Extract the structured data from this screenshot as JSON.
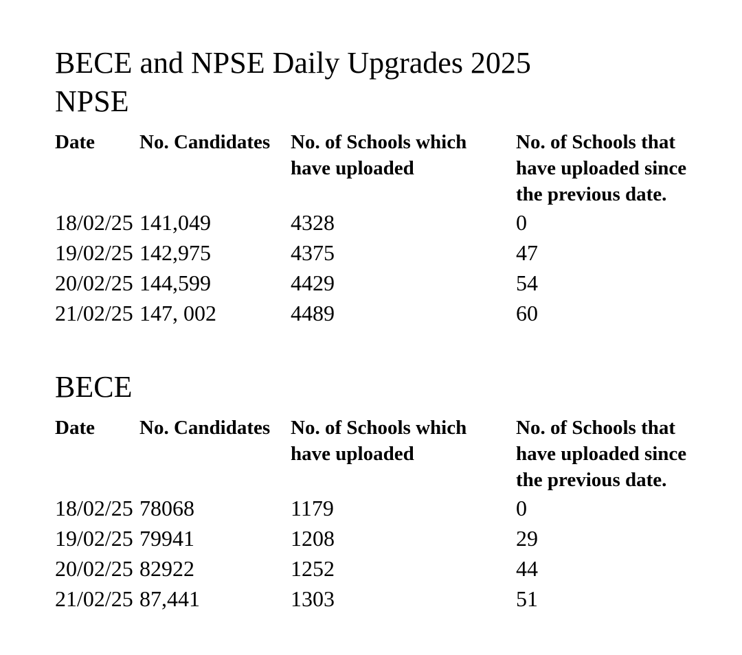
{
  "page": {
    "title": "BECE and NPSE Daily Upgrades 2025"
  },
  "columns": {
    "date": "Date",
    "candidates": "No. Candidates",
    "schools_uploaded": "No. of Schools which\nhave uploaded",
    "schools_since": "No. of Schools that\nhave uploaded since\nthe previous date."
  },
  "sections": [
    {
      "heading": "NPSE",
      "rows": [
        [
          "18/02/25",
          "141,049",
          "4328",
          "0"
        ],
        [
          "19/02/25",
          "142,975",
          "4375",
          "47"
        ],
        [
          "20/02/25",
          "144,599",
          "4429",
          "54"
        ],
        [
          "21/02/25",
          "147, 002",
          "4489",
          "60"
        ]
      ]
    },
    {
      "heading": "BECE",
      "rows": [
        [
          "18/02/25",
          "78068",
          "1179",
          "0"
        ],
        [
          "19/02/25",
          "79941",
          "1208",
          "29"
        ],
        [
          "20/02/25",
          "82922",
          "1252",
          "44"
        ],
        [
          "21/02/25",
          "87,441",
          "1303",
          "51"
        ]
      ]
    }
  ]
}
